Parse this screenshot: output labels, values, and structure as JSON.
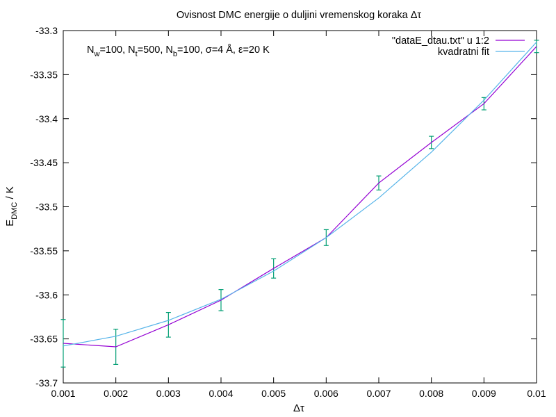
{
  "chart_data": {
    "type": "line",
    "title": "Ovisnost DMC energije o duljini vremenskog koraka Δτ",
    "xlabel": "Δτ",
    "ylabel_main": "E",
    "ylabel_sub": "DMC",
    "ylabel_unit": " / K",
    "xlim": [
      0.001,
      0.01
    ],
    "ylim": [
      -33.7,
      -33.3
    ],
    "xticks": [
      0.001,
      0.002,
      0.003,
      0.004,
      0.005,
      0.006,
      0.007,
      0.008,
      0.009,
      0.01
    ],
    "xtick_labels": [
      "0.001",
      "0.002",
      "0.003",
      "0.004",
      "0.005",
      "0.006",
      "0.007",
      "0.008",
      "0.009",
      "0.01"
    ],
    "yticks": [
      -33.3,
      -33.35,
      -33.4,
      -33.45,
      -33.5,
      -33.55,
      -33.6,
      -33.65,
      -33.7
    ],
    "ytick_labels": [
      "-33.3",
      "-33.35",
      "-33.4",
      "-33.45",
      "-33.5",
      "-33.55",
      "-33.6",
      "-33.65",
      "-33.7"
    ],
    "grid": false,
    "legend_position": "top-right",
    "annotation": {
      "parts": [
        {
          "t": "N"
        },
        {
          "t": "w",
          "sub": true
        },
        {
          "t": "=100, N"
        },
        {
          "t": "t",
          "sub": true
        },
        {
          "t": "=500, N"
        },
        {
          "t": "b",
          "sub": true
        },
        {
          "t": "=100, σ=4 Å, ε=20 K"
        }
      ]
    },
    "series": [
      {
        "name": "\"dataE_dtau.txt\" u 1:2",
        "color": "#9400d3",
        "style": "line-errorbars",
        "errorbar_color": "#009e73",
        "x": [
          0.001,
          0.002,
          0.003,
          0.004,
          0.005,
          0.006,
          0.007,
          0.008,
          0.009,
          0.01
        ],
        "y": [
          -33.655,
          -33.659,
          -33.634,
          -33.606,
          -33.57,
          -33.535,
          -33.473,
          -33.427,
          -33.383,
          -33.318
        ],
        "err": [
          0.027,
          0.02,
          0.014,
          0.012,
          0.011,
          0.009,
          0.008,
          0.007,
          0.007,
          0.007
        ]
      },
      {
        "name": "kvadratni fit",
        "color": "#56b4e9",
        "style": "line",
        "x": [
          0.001,
          0.002,
          0.003,
          0.004,
          0.005,
          0.006,
          0.007,
          0.008,
          0.009,
          0.01
        ],
        "y": [
          -33.658,
          -33.647,
          -33.629,
          -33.605,
          -33.573,
          -33.535,
          -33.49,
          -33.438,
          -33.379,
          -33.313
        ]
      }
    ]
  }
}
